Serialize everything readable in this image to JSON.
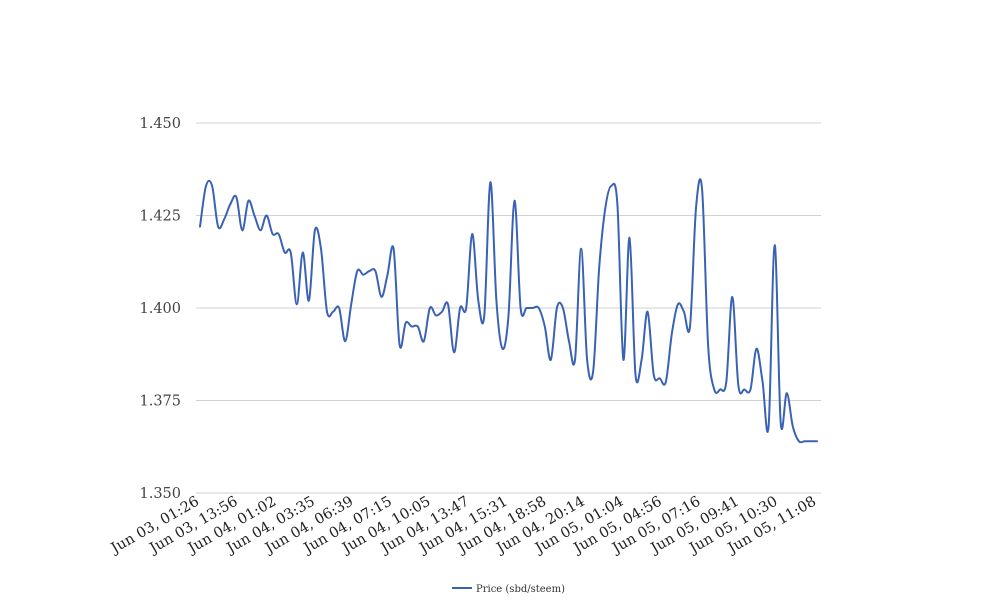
{
  "chart_data": {
    "type": "line",
    "title": "",
    "xlabel": "",
    "ylabel": "",
    "ylim": [
      1.35,
      1.45
    ],
    "y_ticks": [
      "1.450",
      "1.425",
      "1.400",
      "1.375",
      "1.350"
    ],
    "y_tick_values": [
      1.45,
      1.425,
      1.4,
      1.375,
      1.35
    ],
    "x_ticks": [
      "Jun 03, 01:26",
      "Jun 03, 13:56",
      "Jun 04, 01:02",
      "Jun 04, 03:35",
      "Jun 04, 06:39",
      "Jun 04, 07:15",
      "Jun 04, 10:05",
      "Jun 04, 13:47",
      "Jun 04, 15:31",
      "Jun 04, 18:58",
      "Jun 04, 20:14",
      "Jun 05, 01:04",
      "Jun 05, 04:56",
      "Jun 05, 07:16",
      "Jun 05, 09:41",
      "Jun 05, 10:30",
      "Jun 05, 11:08"
    ],
    "grid": true,
    "legend_position": "bottom",
    "series": [
      {
        "name": "Price (sbd/steem)",
        "color": "#3a62b4",
        "values": [
          1.422,
          1.433,
          1.433,
          1.422,
          1.424,
          1.428,
          1.43,
          1.421,
          1.429,
          1.425,
          1.421,
          1.425,
          1.42,
          1.42,
          1.415,
          1.415,
          1.401,
          1.415,
          1.402,
          1.421,
          1.416,
          1.399,
          1.399,
          1.4,
          1.391,
          1.401,
          1.41,
          1.409,
          1.41,
          1.41,
          1.403,
          1.409,
          1.416,
          1.39,
          1.396,
          1.395,
          1.395,
          1.391,
          1.4,
          1.398,
          1.399,
          1.401,
          1.388,
          1.4,
          1.4,
          1.42,
          1.402,
          1.398,
          1.434,
          1.402,
          1.389,
          1.398,
          1.429,
          1.4,
          1.4,
          1.4,
          1.4,
          1.395,
          1.386,
          1.4,
          1.4,
          1.391,
          1.386,
          1.416,
          1.386,
          1.383,
          1.411,
          1.427,
          1.433,
          1.428,
          1.386,
          1.419,
          1.382,
          1.386,
          1.399,
          1.382,
          1.381,
          1.38,
          1.393,
          1.401,
          1.399,
          1.395,
          1.427,
          1.432,
          1.39,
          1.378,
          1.378,
          1.38,
          1.403,
          1.379,
          1.378,
          1.378,
          1.389,
          1.38,
          1.368,
          1.417,
          1.369,
          1.377,
          1.368,
          1.364,
          1.364,
          1.364,
          1.364
        ]
      }
    ]
  }
}
